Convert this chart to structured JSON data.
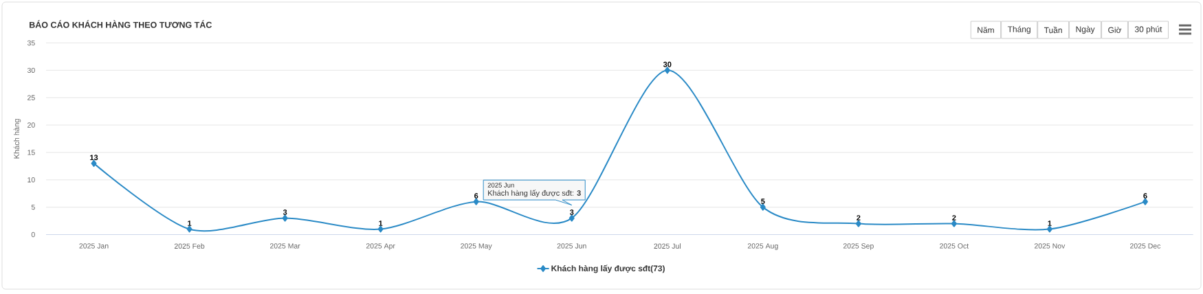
{
  "chart_data": {
    "type": "line",
    "title": "BÁO CÁO KHÁCH HÀNG THEO TƯƠNG TÁC",
    "ylabel": "Khách hàng",
    "categories": [
      "2025 Jan",
      "2025 Feb",
      "2025 Mar",
      "2025 Apr",
      "2025 May",
      "2025 Jun",
      "2025 Jul",
      "2025 Aug",
      "2025 Sep",
      "2025 Oct",
      "2025 Nov",
      "2025 Dec"
    ],
    "series": [
      {
        "name": "Khách hàng lấy được sđt(73)",
        "color": "#2a8ac6",
        "values": [
          13,
          1,
          3,
          1,
          6,
          3,
          30,
          5,
          2,
          2,
          1,
          6
        ]
      }
    ],
    "ylim": [
      0,
      35
    ],
    "yticks": [
      0,
      5,
      10,
      15,
      20,
      25,
      30,
      35
    ],
    "grid": "y",
    "legend": "bottom",
    "marker": "diamond",
    "line_style": "solid",
    "data_labels": true,
    "annotations": [
      "Năm",
      "Tháng",
      "Tuần",
      "Ngày",
      "Giờ",
      "30 phút",
      {
        "text": "Khách hàng lấy được sđt: **3**",
        "x": "2025 Jun",
        "y": 3
      },
      "2025 Jun"
    ]
  }
}
